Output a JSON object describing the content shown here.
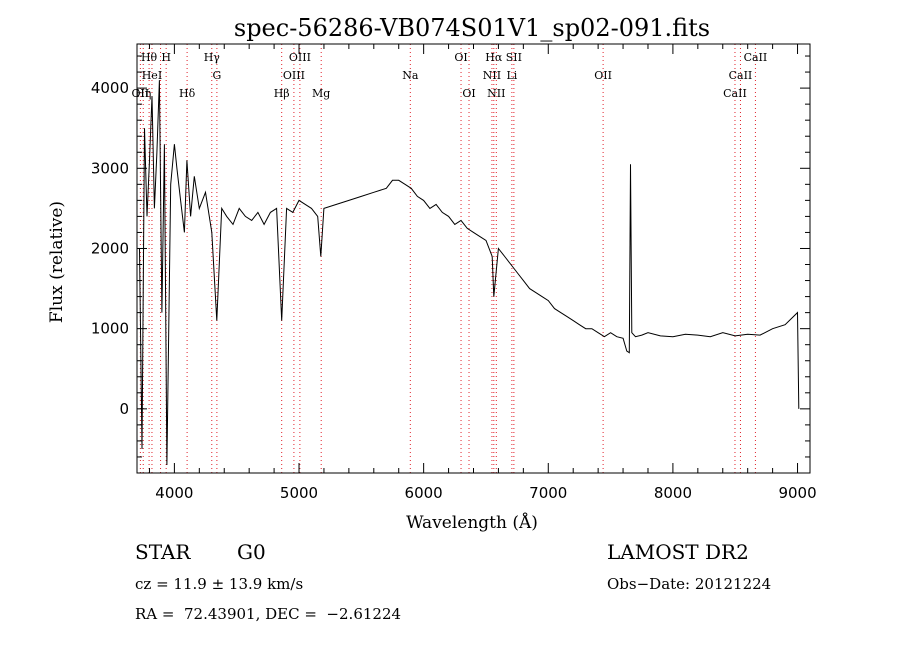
{
  "chart_data": {
    "type": "line",
    "title": "spec-56286-VB074S01V1_sp02-091.fits",
    "xlabel": "Wavelength (Å)",
    "ylabel": "Flux (relative)",
    "xlim": [
      3700,
      9100
    ],
    "ylim": [
      -800,
      4550
    ],
    "x_ticks": [
      4000,
      5000,
      6000,
      7000,
      8000,
      9000
    ],
    "y_ticks": [
      0,
      1000,
      2000,
      3000,
      4000
    ],
    "line_color": "#000000",
    "marker_color": "#e0202a",
    "grid": false,
    "series": [
      {
        "x": [
          3720,
          3740,
          3760,
          3780,
          3800,
          3820,
          3840,
          3860,
          3880,
          3900,
          3920,
          3940,
          3970,
          4000,
          4020,
          4050,
          4080,
          4100,
          4130,
          4160,
          4200,
          4250,
          4300,
          4340,
          4380,
          4420,
          4470,
          4520,
          4570,
          4620,
          4670,
          4720,
          4770,
          4820,
          4861,
          4900,
          4950,
          5000,
          5050,
          5100,
          5150,
          5175,
          5200,
          5300,
          5400,
          5500,
          5600,
          5700,
          5750,
          5800,
          5850,
          5900,
          5950,
          6000,
          6050,
          6100,
          6150,
          6200,
          6250,
          6300,
          6350,
          6400,
          6450,
          6500,
          6550,
          6563,
          6600,
          6650,
          6700,
          6750,
          6800,
          6850,
          6900,
          6950,
          7000,
          7050,
          7100,
          7150,
          7200,
          7250,
          7300,
          7350,
          7400,
          7450,
          7500,
          7550,
          7600,
          7630,
          7650,
          7660,
          7670,
          7700,
          7750,
          7800,
          7900,
          8000,
          8100,
          8200,
          8300,
          8400,
          8500,
          8600,
          8700,
          8800,
          8900,
          9000,
          9010
        ],
        "y": [
          2000,
          -500,
          3500,
          2400,
          3100,
          3900,
          2500,
          3200,
          4100,
          1200,
          3300,
          -700,
          2800,
          3300,
          3000,
          2600,
          2200,
          3100,
          2400,
          2900,
          2500,
          2700,
          2200,
          1100,
          2500,
          2400,
          2300,
          2500,
          2400,
          2350,
          2450,
          2300,
          2450,
          2500,
          1100,
          2500,
          2450,
          2600,
          2550,
          2500,
          2400,
          1900,
          2500,
          2550,
          2600,
          2650,
          2700,
          2750,
          2850,
          2850,
          2800,
          2750,
          2650,
          2600,
          2500,
          2550,
          2450,
          2400,
          2300,
          2350,
          2250,
          2200,
          2150,
          2100,
          1900,
          1400,
          2000,
          1900,
          1800,
          1700,
          1600,
          1500,
          1450,
          1400,
          1350,
          1250,
          1200,
          1150,
          1100,
          1050,
          1000,
          1000,
          950,
          900,
          950,
          900,
          880,
          720,
          700,
          3050,
          950,
          900,
          920,
          950,
          910,
          900,
          930,
          920,
          900,
          950,
          910,
          930,
          920,
          1000,
          1050,
          1200,
          0
        ]
      }
    ],
    "lines": [
      {
        "x": 3727,
        "labels": [
          {
            "text": "OII",
            "row": 3
          }
        ]
      },
      {
        "x": 3750,
        "labels": [
          {
            "text": "Hη",
            "row": 3
          }
        ]
      },
      {
        "x": 3797,
        "labels": [
          {
            "text": "Hθ",
            "row": 1
          }
        ]
      },
      {
        "x": 3820,
        "labels": [
          {
            "text": "HeI",
            "row": 2
          }
        ]
      },
      {
        "x": 3889,
        "labels": []
      },
      {
        "x": 3934,
        "labels": [
          {
            "text": "H",
            "row": 1
          }
        ]
      },
      {
        "x": 4102,
        "labels": [
          {
            "text": "Hδ",
            "row": 3
          }
        ]
      },
      {
        "x": 4300,
        "labels": [
          {
            "text": "Hγ",
            "row": 1
          }
        ]
      },
      {
        "x": 4341,
        "labels": [
          {
            "text": "G",
            "row": 2
          }
        ]
      },
      {
        "x": 4861,
        "labels": [
          {
            "text": "Hβ",
            "row": 3
          }
        ]
      },
      {
        "x": 4959,
        "labels": [
          {
            "text": "OIII",
            "row": 2
          }
        ]
      },
      {
        "x": 5007,
        "labels": [
          {
            "text": "OIII",
            "row": 1
          }
        ]
      },
      {
        "x": 5178,
        "labels": [
          {
            "text": "Mg",
            "row": 3
          }
        ]
      },
      {
        "x": 5893,
        "labels": [
          {
            "text": "Na",
            "row": 2
          }
        ]
      },
      {
        "x": 6300,
        "labels": [
          {
            "text": "OI",
            "row": 1
          }
        ]
      },
      {
        "x": 6364,
        "labels": [
          {
            "text": "OI",
            "row": 3
          }
        ]
      },
      {
        "x": 6548,
        "labels": [
          {
            "text": "NII",
            "row": 2
          }
        ]
      },
      {
        "x": 6563,
        "labels": [
          {
            "text": "Hα",
            "row": 1
          }
        ]
      },
      {
        "x": 6583,
        "labels": [
          {
            "text": "NII",
            "row": 3
          }
        ]
      },
      {
        "x": 6708,
        "labels": [
          {
            "text": "Li",
            "row": 2
          }
        ]
      },
      {
        "x": 6724,
        "labels": [
          {
            "text": "SII",
            "row": 1
          }
        ]
      },
      {
        "x": 7440,
        "labels": [
          {
            "text": "OII",
            "row": 2
          }
        ]
      },
      {
        "x": 8498,
        "labels": [
          {
            "text": "CaII",
            "row": 3
          }
        ]
      },
      {
        "x": 8542,
        "labels": [
          {
            "text": "CaII",
            "row": 2
          }
        ]
      },
      {
        "x": 8662,
        "labels": [
          {
            "text": "CaII",
            "row": 1
          }
        ]
      }
    ]
  },
  "info": {
    "class": "STAR",
    "subclass": "G0",
    "survey": "LAMOST DR2",
    "cz": "cz = 11.9 ± 13.9 km/s",
    "obs_date": "Obs−Date: 20121224",
    "coords": "RA =  72.43901, DEC =  −2.61224"
  }
}
